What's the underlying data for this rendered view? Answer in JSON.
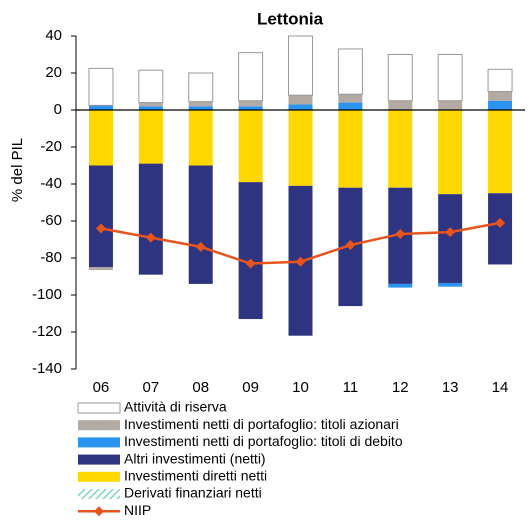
{
  "chart_data": {
    "type": "bar",
    "stacked": true,
    "title": "Lettonia",
    "y_label": "% del PIL",
    "categories": [
      "06",
      "07",
      "08",
      "09",
      "10",
      "11",
      "12",
      "13",
      "14"
    ],
    "ylim": [
      -140,
      40
    ],
    "yticks": [
      -140,
      -120,
      -100,
      -80,
      -60,
      -40,
      -20,
      0,
      20,
      40
    ],
    "series": [
      {
        "name": "Attività di riserva",
        "color": "#ffffff",
        "values": [
          20,
          17.5,
          15.5,
          26,
          32,
          24.5,
          25,
          25,
          12
        ]
      },
      {
        "name": "Investimenti netti di portafoglio: titoli azionari",
        "color": "#b3aaa3",
        "values": [
          -1.5,
          2,
          2.5,
          3,
          5,
          4.5,
          5,
          5,
          5
        ]
      },
      {
        "name": "Investimenti netti di portafoglio: titoli di debito",
        "color": "#2b93f0",
        "values": [
          2.5,
          2,
          2,
          2,
          3,
          4,
          -2,
          -2,
          5
        ]
      },
      {
        "name": "Altri investimenti (netti)",
        "color": "#2e3480",
        "values": [
          -55,
          -60,
          -64,
          -74,
          -81,
          -64,
          -52,
          -48,
          -38.5
        ]
      },
      {
        "name": "Investimenti diretti netti",
        "color": "#ffd700",
        "values": [
          -30,
          -29,
          -30,
          -39,
          -41,
          -42,
          -42,
          -45.5,
          -45
        ]
      },
      {
        "name": "Derivati finanziari netti",
        "color": "#7fd4c0",
        "values": [
          0,
          0,
          0,
          0,
          0,
          0,
          0,
          0,
          0
        ]
      },
      {
        "name": "NIIP",
        "type": "line",
        "color": "#e8541e",
        "values": [
          -64,
          -69,
          -74,
          -83,
          -82,
          -73,
          -67,
          -66,
          -61
        ]
      }
    ]
  }
}
